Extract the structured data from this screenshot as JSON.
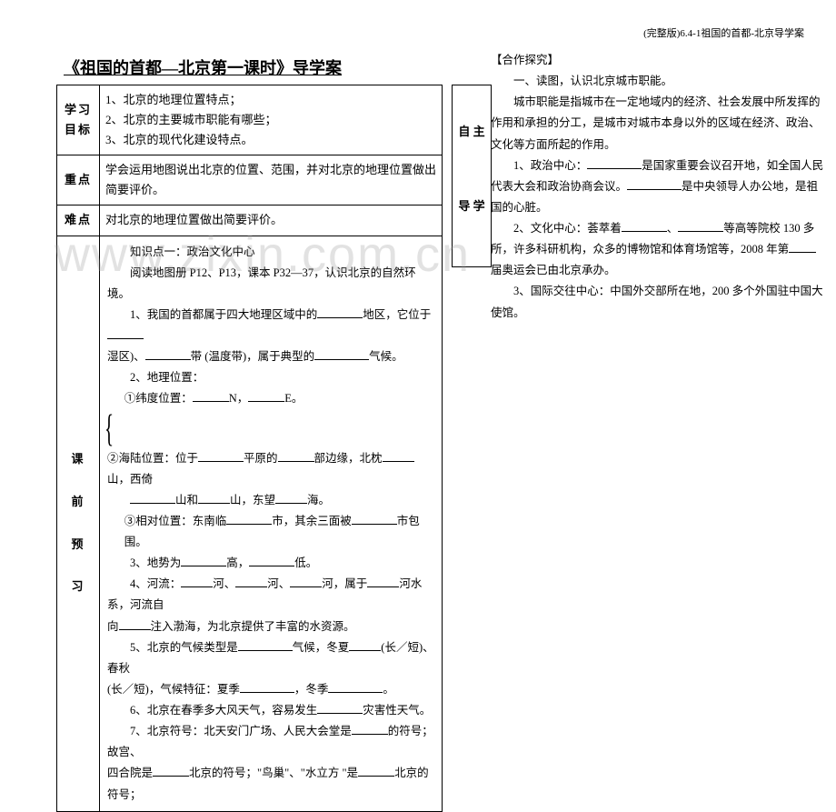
{
  "header_note": "(完整版)6.4-1祖国的首都-北京导学案",
  "page_title": "《祖国的首都—北京第一课时》导学案",
  "left_table": {
    "row1_label": "学习目标",
    "row1_content_1": "1、北京的地理位置特点；",
    "row1_content_2": "2、北京的主要城市职能有哪些；",
    "row1_content_3": "3、北京的现代化建设特点。",
    "row2_label": "重点",
    "row2_content": "学会运用地图说出北京的位置、范围，并对北京的地理位置做出简要评价。",
    "row3_label": "难点",
    "row3_content": "对北京的地理位置做出简要评价。",
    "row4_label_1": "课",
    "row4_label_2": "前",
    "row4_label_3": "预",
    "row4_label_4": "习",
    "knowledge_intro_1": "知识点一：政治文化中心",
    "knowledge_intro_2": "阅读地图册 P12、P13，课本 P32—37，认识北京的自然环境。",
    "k1_prefix": "1、我国的首都属于四大地理区域中的",
    "k1_suffix1": "地区，它位于",
    "k1_line2_1": "湿区)、",
    "k1_line2_2": "带 (温度带)，属于典型的",
    "k1_line2_3": "气候。",
    "k2": "2、地理位置：",
    "k2a_prefix": "①纬度位置：",
    "k2a_mid": "N，",
    "k2a_suffix": "E。",
    "k2b_prefix": "②海陆位置：位于",
    "k2b_mid1": "平原的",
    "k2b_mid2": "部边缘，北枕",
    "k2b_mid3": "山，西",
    "k2b_line2_1": "山和",
    "k2b_line2_2": "山，东望",
    "k2b_line2_3": "海。",
    "k2c_prefix": "③相对位置：东南临",
    "k2c_mid": "市，其余三面被",
    "k2c_suffix": "市包围。",
    "k3_prefix": "3、地势为",
    "k3_mid": "高，",
    "k3_suffix": "低。",
    "k4_prefix": "4、河流：",
    "k4_mid1": "河、",
    "k4_mid2": "河、",
    "k4_mid3": "河，属于",
    "k4_mid4": "河水系，河流自",
    "k4_line2": "注入渤海，为北京提供了丰富的水资源。",
    "k5_prefix": "5、北京的气候类型是",
    "k5_mid1": "气候，冬夏",
    "k5_mid2": "(长／短)、春秋",
    "k5_line2_1": "(长／短)，气候特征：夏季",
    "k5_line2_2": "，冬季",
    "k5_line2_3": "。",
    "k6_prefix": "6、北京在春季多大风天气，容易发生",
    "k6_suffix": "灾害性天气。",
    "k7_prefix": "7、北京符号：北天安门广场、人民大会堂是",
    "k7_suffix": "的符号；故宫、",
    "k7_line2_1": "四合院是",
    "k7_line2_2": "北京的符号；\"鸟巢\"、\"水立方 \"是",
    "k7_line2_3": "北京的符号；"
  },
  "right_overlay_1": "自  主",
  "right_overlay_2": "导  学",
  "right_content": {
    "heading": "【合作探究】",
    "p1": "一、读图，认识北京城市职能。",
    "p2": "城市职能是指城市在一定地域内的经济、社会发展中所发挥的作用和承担的分工，是城市对城市本身以外的区域在经济、政治、文化等方面所起的作用。",
    "p3_prefix": "1、政治中心：",
    "p3_mid": "是国家重要会议召开地，如全国人民代表大会和政治协商会议。",
    "p3_suffix": "是中央领导人办公地，是祖国的心脏。",
    "p4_prefix": "2、文化中心：荟萃着",
    "p4_mid": "、",
    "p4_suffix": "等高等院校 130 多所，许多科研机构，众多的博物馆和体育场馆等，2008 年第",
    "p4_end": "届奥运会已由北京承办。",
    "p5": "3、国际交往中心：中国外交部所在地，200 多个外国驻中国大使馆。"
  },
  "watermark": "www.zixin.com.cn"
}
